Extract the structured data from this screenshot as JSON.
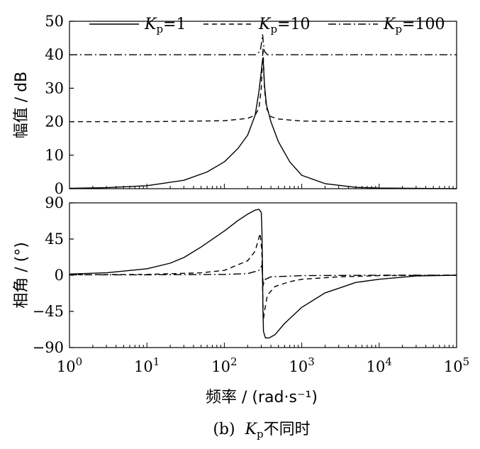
{
  "chart_data": [
    {
      "type": "line",
      "panel": "magnitude",
      "ylabel": "幅值 / dB",
      "x_scale": "log",
      "xlim": [
        1,
        100000
      ],
      "ylim": [
        0,
        50
      ],
      "yticks": [
        "0",
        "10",
        "20",
        "30",
        "40",
        "50"
      ],
      "grid": false,
      "legend": {
        "placement": "top",
        "entries": [
          {
            "prefix": "K",
            "sub": "p",
            "suffix": "=1",
            "style": "solid"
          },
          {
            "prefix": "K",
            "sub": "p",
            "suffix": "=10",
            "style": "dashed"
          },
          {
            "prefix": "K",
            "sub": "p",
            "suffix": "=100",
            "style": "dashdot"
          }
        ]
      },
      "series": [
        {
          "legend_index": 0,
          "style": "solid",
          "x": [
            1,
            3,
            10,
            30,
            60,
            100,
            150,
            200,
            250,
            280,
            300,
            310,
            315,
            320,
            330,
            350,
            400,
            500,
            700,
            1000,
            2000,
            5000,
            10000,
            100000
          ],
          "y": [
            0.1,
            0.3,
            0.9,
            2.5,
            5,
            8,
            12,
            16,
            22,
            29,
            35,
            38,
            39,
            37,
            31,
            25,
            20,
            14,
            8,
            4,
            1.5,
            0.4,
            0.2,
            0
          ]
        },
        {
          "legend_index": 1,
          "style": "dashed",
          "x": [
            1,
            10,
            100,
            200,
            250,
            280,
            300,
            310,
            315,
            320,
            330,
            350,
            400,
            500,
            1000,
            10000,
            100000
          ],
          "y": [
            20,
            20,
            20.3,
            21,
            22,
            24,
            30,
            38,
            42,
            38,
            30,
            24,
            21.5,
            20.8,
            20.2,
            20,
            20
          ]
        },
        {
          "legend_index": 2,
          "style": "dashdot",
          "x": [
            1,
            10,
            100,
            250,
            290,
            305,
            312,
            318,
            330,
            360,
            1000,
            10000,
            100000
          ],
          "y": [
            40,
            40,
            40,
            40,
            41,
            44,
            46,
            44,
            41,
            40,
            40,
            40,
            40
          ]
        }
      ]
    },
    {
      "type": "line",
      "panel": "phase",
      "ylabel": "相角 / (°)",
      "xlabel": "频率 / (rad·s⁻¹)",
      "x_scale": "log",
      "xlim": [
        1,
        100000
      ],
      "ylim": [
        -90,
        90
      ],
      "yticks": [
        "90",
        "45",
        "0",
        "-45",
        "-90"
      ],
      "xticks": [
        {
          "base": "10",
          "exp": "0"
        },
        {
          "base": "10",
          "exp": "1"
        },
        {
          "base": "10",
          "exp": "2"
        },
        {
          "base": "10",
          "exp": "3"
        },
        {
          "base": "10",
          "exp": "4"
        },
        {
          "base": "10",
          "exp": "5"
        }
      ],
      "grid": false,
      "series": [
        {
          "legend_index": 0,
          "style": "solid",
          "x": [
            1,
            3,
            10,
            20,
            30,
            50,
            100,
            150,
            200,
            250,
            280,
            300,
            305,
            310,
            315,
            320,
            340,
            380,
            450,
            600,
            1000,
            2000,
            5000,
            10000,
            30000,
            100000
          ],
          "y": [
            1.5,
            3,
            8,
            15,
            22,
            35,
            55,
            68,
            76,
            81,
            82,
            78,
            60,
            20,
            -40,
            -70,
            -78,
            -78,
            -74,
            -60,
            -40,
            -22,
            -9,
            -5,
            -1,
            0
          ]
        },
        {
          "legend_index": 1,
          "style": "dashed",
          "x": [
            1,
            10,
            50,
            100,
            200,
            250,
            290,
            305,
            310,
            315,
            320,
            330,
            360,
            450,
            700,
            1000,
            3000,
            10000,
            100000
          ],
          "y": [
            0.5,
            1,
            3,
            6,
            18,
            30,
            52,
            30,
            0,
            -35,
            -55,
            -45,
            -25,
            -14,
            -8,
            -5,
            -2,
            -0.5,
            0
          ]
        },
        {
          "legend_index": 2,
          "style": "dashdot",
          "x": [
            1,
            10,
            100,
            200,
            280,
            305,
            312,
            318,
            325,
            340,
            400,
            1000,
            10000,
            100000
          ],
          "y": [
            0.5,
            0.5,
            1,
            2,
            6,
            12,
            0,
            -14,
            -9,
            -5,
            -2,
            -0.5,
            0,
            0
          ]
        }
      ]
    }
  ],
  "caption": {
    "prefix": "(b)  ",
    "k": "K",
    "sub": "p",
    "suffix": "不同时"
  }
}
